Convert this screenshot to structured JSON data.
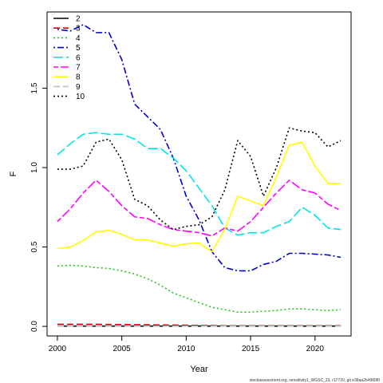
{
  "chart_data": {
    "type": "line",
    "title": "",
    "xlabel": "Year",
    "ylabel": "F",
    "xlim": [
      1999.2,
      2022.8
    ],
    "ylim": [
      -0.06,
      1.98
    ],
    "x_ticks": [
      2000,
      2005,
      2010,
      2015,
      2020
    ],
    "y_ticks": [
      0.0,
      0.5,
      1.0,
      1.5
    ],
    "x_tick_labels": [
      "2000",
      "2005",
      "2010",
      "2015",
      "2020"
    ],
    "y_tick_labels": [
      "0.0",
      "0.5",
      "1.0",
      "1.5"
    ],
    "legend_position": "top-left",
    "grid": false,
    "x": [
      2000,
      2001,
      2002,
      2003,
      2004,
      2005,
      2006,
      2007,
      2008,
      2009,
      2010,
      2011,
      2012,
      2013,
      2014,
      2015,
      2016,
      2017,
      2018,
      2019,
      2020,
      2021,
      2022
    ],
    "series": [
      {
        "name": "2",
        "color": "#000000",
        "dash": "solid",
        "values": [
          0.002,
          0.002,
          0.002,
          0.002,
          0.002,
          0.002,
          0.002,
          0.002,
          0.002,
          0.002,
          0.002,
          0.002,
          0.002,
          0.002,
          0.002,
          0.002,
          0.002,
          0.002,
          0.002,
          0.002,
          0.002,
          0.002,
          0.002
        ]
      },
      {
        "name": "3",
        "color": "#df0000",
        "dash": "dashed",
        "values": [
          0.013,
          0.013,
          0.013,
          0.013,
          0.012,
          0.012,
          0.011,
          0.01,
          0.009,
          0.008,
          0.007,
          0.006,
          0.005,
          0.004,
          0.004,
          0.004,
          0.004,
          0.004,
          0.004,
          0.004,
          0.004,
          0.004,
          0.004
        ]
      },
      {
        "name": "4",
        "color": "#22c422",
        "dash": "dotted",
        "values": [
          0.38,
          0.385,
          0.38,
          0.37,
          0.365,
          0.35,
          0.33,
          0.3,
          0.26,
          0.21,
          0.18,
          0.15,
          0.12,
          0.105,
          0.09,
          0.09,
          0.095,
          0.1,
          0.11,
          0.11,
          0.105,
          0.1,
          0.105
        ]
      },
      {
        "name": "5",
        "color": "#0000cc",
        "dash": "dotdash",
        "values": [
          1.87,
          1.86,
          1.9,
          1.85,
          1.85,
          1.68,
          1.4,
          1.32,
          1.24,
          1.06,
          0.82,
          0.67,
          0.47,
          0.37,
          0.35,
          0.35,
          0.39,
          0.41,
          0.46,
          0.46,
          0.455,
          0.45,
          0.435
        ]
      },
      {
        "name": "6",
        "color": "#00e5e5",
        "dash": "longdash",
        "values": [
          1.08,
          1.15,
          1.21,
          1.22,
          1.21,
          1.21,
          1.18,
          1.12,
          1.12,
          1.06,
          0.98,
          0.87,
          0.76,
          0.62,
          0.575,
          0.59,
          0.59,
          0.63,
          0.66,
          0.75,
          0.7,
          0.62,
          0.61
        ]
      },
      {
        "name": "7",
        "color": "#ff00ff",
        "dash": "twodash",
        "values": [
          0.66,
          0.74,
          0.84,
          0.92,
          0.85,
          0.76,
          0.69,
          0.68,
          0.64,
          0.61,
          0.6,
          0.59,
          0.57,
          0.62,
          0.6,
          0.66,
          0.75,
          0.84,
          0.92,
          0.86,
          0.84,
          0.77,
          0.73
        ]
      },
      {
        "name": "8",
        "color": "#ffff00",
        "dash": "solid",
        "values": [
          0.49,
          0.5,
          0.54,
          0.595,
          0.605,
          0.58,
          0.545,
          0.545,
          0.525,
          0.505,
          0.52,
          0.525,
          0.47,
          0.61,
          0.82,
          0.79,
          0.76,
          0.94,
          1.14,
          1.16,
          1.01,
          0.9,
          0.9
        ]
      },
      {
        "name": "9",
        "color": "#bebebe",
        "dash": "dashed",
        "values": [
          0.001,
          0.001,
          0.001,
          0.001,
          0.001,
          0.001,
          0.001,
          0.001,
          0.001,
          0.001,
          0.001,
          0.001,
          0.001,
          0.001,
          0.001,
          0.001,
          0.001,
          0.001,
          0.001,
          0.001,
          0.001,
          0.001,
          0.001
        ]
      },
      {
        "name": "10",
        "color": "#000000",
        "dash": "dotted",
        "values": [
          0.99,
          0.99,
          1.01,
          1.16,
          1.18,
          1.05,
          0.8,
          0.76,
          0.67,
          0.61,
          0.63,
          0.64,
          0.69,
          0.86,
          1.17,
          1.07,
          0.82,
          1.0,
          1.25,
          1.23,
          1.22,
          1.13,
          1.17
        ]
      }
    ]
  },
  "footer": {
    "source_note": "stockassessment.org, sensitivity1_WGSC_23, r17720, git e38aa2b4989f0"
  }
}
